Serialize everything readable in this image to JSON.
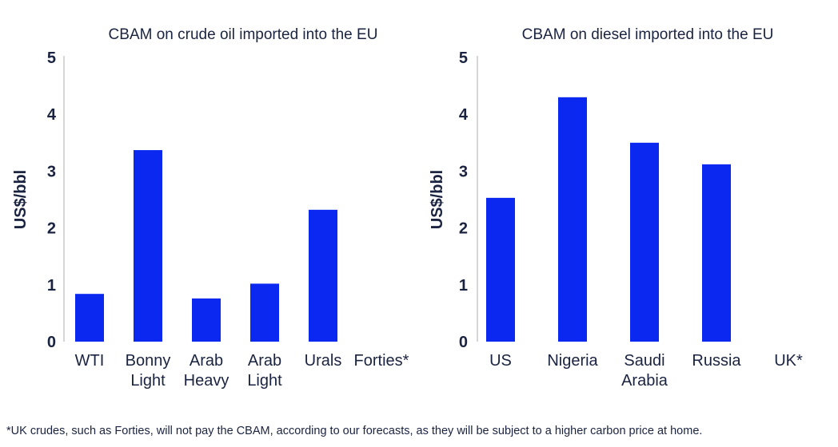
{
  "chart_data": [
    {
      "type": "bar",
      "title": "CBAM on crude oil imported into the EU",
      "ylabel": "US$/bbl",
      "xlabel": "",
      "ylim": [
        0,
        5
      ],
      "yticks": [
        "0",
        "1",
        "2",
        "3",
        "4",
        "5"
      ],
      "categories": [
        [
          "WTI"
        ],
        [
          "Bonny",
          "Light"
        ],
        [
          "Arab",
          "Heavy"
        ],
        [
          "Arab",
          "Light"
        ],
        [
          "Urals"
        ],
        [
          "Forties*"
        ]
      ],
      "values": [
        0.84,
        3.37,
        0.76,
        1.02,
        2.32,
        0
      ],
      "color": "#0a28f0"
    },
    {
      "type": "bar",
      "title": "CBAM on diesel imported into the EU",
      "ylabel": "US$/bbl",
      "xlabel": "",
      "ylim": [
        0,
        5
      ],
      "yticks": [
        "0",
        "1",
        "2",
        "3",
        "4",
        "5"
      ],
      "categories": [
        [
          "US"
        ],
        [
          "Nigeria"
        ],
        [
          "Saudi",
          "Arabia"
        ],
        [
          "Russia"
        ],
        [
          "UK*"
        ]
      ],
      "values": [
        2.53,
        4.3,
        3.5,
        3.12,
        0
      ],
      "color": "#0a28f0"
    }
  ],
  "footnote": "*UK crudes, such as Forties, will not pay the CBAM, according to our forecasts, as they will be subject to a higher carbon price at home."
}
